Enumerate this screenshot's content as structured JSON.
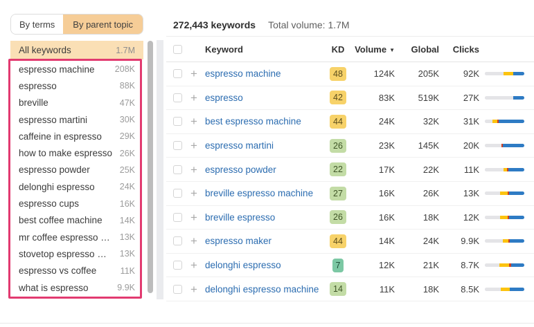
{
  "tabs": {
    "by_terms": "By terms",
    "by_parent_topic": "By parent topic"
  },
  "sidebar": {
    "all_keywords": {
      "label": "All keywords",
      "value": "1.7M"
    },
    "items": [
      {
        "label": "espresso machine",
        "value": "208K"
      },
      {
        "label": "espresso",
        "value": "88K"
      },
      {
        "label": "breville",
        "value": "47K"
      },
      {
        "label": "espresso martini",
        "value": "30K"
      },
      {
        "label": "caffeine in espresso",
        "value": "29K"
      },
      {
        "label": "how to make espresso",
        "value": "26K"
      },
      {
        "label": "espresso powder",
        "value": "25K"
      },
      {
        "label": "delonghi espresso",
        "value": "24K"
      },
      {
        "label": "espresso cups",
        "value": "16K"
      },
      {
        "label": "best coffee machine",
        "value": "14K"
      },
      {
        "label": "mr coffee espresso …",
        "value": "13K"
      },
      {
        "label": "stovetop espresso …",
        "value": "13K"
      },
      {
        "label": "espresso vs coffee",
        "value": "11K"
      },
      {
        "label": "what is espresso",
        "value": "9.9K"
      }
    ]
  },
  "stats": {
    "keywords": "272,443 keywords",
    "total_volume": "Total volume: 1.7M"
  },
  "table": {
    "columns": {
      "keyword": "Keyword",
      "kd": "KD",
      "volume": "Volume",
      "global": "Global",
      "clicks": "Clicks"
    },
    "sort_icon": "▼",
    "plus_icon": "+",
    "rows": [
      {
        "keyword": "espresso machine",
        "kd": "48",
        "kd_color": "yellow",
        "volume": "124K",
        "global": "205K",
        "clicks": "92K",
        "bar": {
          "gray": 47,
          "yellow": 25,
          "red": 0,
          "blue": 28
        }
      },
      {
        "keyword": "espresso",
        "kd": "42",
        "kd_color": "yellow",
        "volume": "83K",
        "global": "519K",
        "clicks": "27K",
        "bar": {
          "gray": 72,
          "yellow": 0,
          "red": 0,
          "blue": 28
        }
      },
      {
        "keyword": "best espresso machine",
        "kd": "44",
        "kd_color": "yellow",
        "volume": "24K",
        "global": "32K",
        "clicks": "31K",
        "bar": {
          "gray": 20,
          "yellow": 12,
          "red": 4,
          "blue": 64
        }
      },
      {
        "keyword": "espresso martini",
        "kd": "26",
        "kd_color": "green",
        "volume": "23K",
        "global": "145K",
        "clicks": "20K",
        "bar": {
          "gray": 42,
          "yellow": 0,
          "red": 4,
          "blue": 54
        }
      },
      {
        "keyword": "espresso powder",
        "kd": "22",
        "kd_color": "green",
        "volume": "17K",
        "global": "22K",
        "clicks": "11K",
        "bar": {
          "gray": 48,
          "yellow": 8,
          "red": 4,
          "blue": 40
        }
      },
      {
        "keyword": "breville espresso machine",
        "kd": "27",
        "kd_color": "green",
        "volume": "16K",
        "global": "26K",
        "clicks": "13K",
        "bar": {
          "gray": 38,
          "yellow": 20,
          "red": 4,
          "blue": 38
        }
      },
      {
        "keyword": "breville espresso",
        "kd": "26",
        "kd_color": "green",
        "volume": "16K",
        "global": "18K",
        "clicks": "12K",
        "bar": {
          "gray": 38,
          "yellow": 20,
          "red": 4,
          "blue": 38
        }
      },
      {
        "keyword": "espresso maker",
        "kd": "44",
        "kd_color": "yellow",
        "volume": "14K",
        "global": "24K",
        "clicks": "9.9K",
        "bar": {
          "gray": 45,
          "yellow": 15,
          "red": 4,
          "blue": 36
        }
      },
      {
        "keyword": "delonghi espresso",
        "kd": "7",
        "kd_color": "teal",
        "volume": "12K",
        "global": "21K",
        "clicks": "8.7K",
        "bar": {
          "gray": 36,
          "yellow": 26,
          "red": 4,
          "blue": 34
        }
      },
      {
        "keyword": "delonghi espresso machine",
        "kd": "14",
        "kd_color": "green",
        "volume": "11K",
        "global": "18K",
        "clicks": "8.5K",
        "bar": {
          "gray": 40,
          "yellow": 24,
          "red": 0,
          "blue": 36
        }
      }
    ]
  },
  "colors": {
    "tab_active_bg": "#f6cd97",
    "all_keywords_bg": "#fadfb5",
    "annotation_pink": "#e23a70",
    "link_blue": "#2b6cb0",
    "kd_yellow": "#f7d269",
    "kd_green": "#c3dca6",
    "kd_teal": "#7cc8a4",
    "bar_blue": "#2e7bc4",
    "bar_yellow": "#fcc30f",
    "bar_red": "#cf4024",
    "bar_gray": "#e4e4e7"
  }
}
